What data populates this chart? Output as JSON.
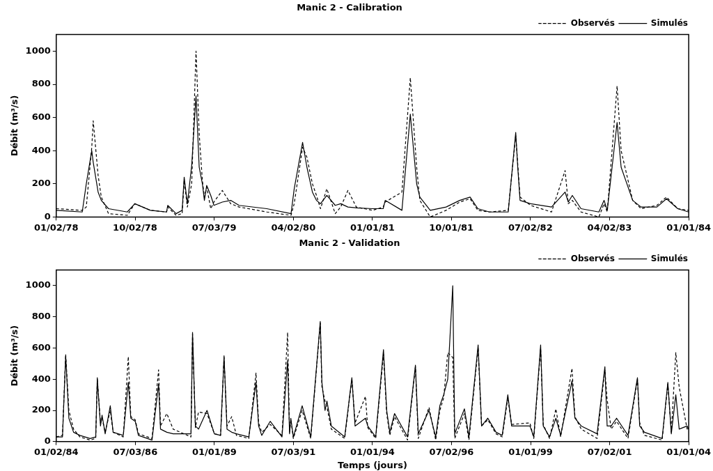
{
  "chart_data": [
    {
      "type": "line",
      "title": "Manic 2 - Calibration",
      "ylabel": "Débit (m³/s)",
      "legend": "top right",
      "grid": false,
      "marker": "none",
      "xlim": [
        "1978-01-02",
        "1984-01-01"
      ],
      "ylim": [
        0,
        1100
      ],
      "yticks": [
        0,
        200,
        400,
        600,
        800,
        1000
      ],
      "xticks": [
        {
          "value": "1978-01-02",
          "label": "01/02/78"
        },
        {
          "value": "1978-10-02",
          "label": "10/02/78"
        },
        {
          "value": "1979-07-03",
          "label": "07/03/79"
        },
        {
          "value": "1980-04-02",
          "label": "04/02/80"
        },
        {
          "value": "1981-01-01",
          "label": "01/01/81"
        },
        {
          "value": "1981-10-01",
          "label": "10/01/81"
        },
        {
          "value": "1982-07-02",
          "label": "07/02/82"
        },
        {
          "value": "1983-04-02",
          "label": "04/02/83"
        },
        {
          "value": "1984-01-01",
          "label": "01/01/84"
        }
      ],
      "x": [
        "1978-01-02",
        "1978-04-02",
        "1978-04-16",
        "1978-05-05",
        "1978-05-10",
        "1978-05-27",
        "1978-06-07",
        "1978-07-02",
        "1978-09-05",
        "1978-10-01",
        "1978-11-24",
        "1979-01-19",
        "1979-01-23",
        "1979-02-21",
        "1979-03-14",
        "1979-03-21",
        "1979-04-01",
        "1979-04-16",
        "1979-05-01",
        "1979-05-12",
        "1979-05-23",
        "1979-05-30",
        "1979-06-07",
        "1979-06-21",
        "1979-07-02",
        "1979-07-31",
        "1979-08-29",
        "1979-09-27",
        "1980-01-01",
        "1980-03-25",
        "1980-04-05",
        "1980-05-04",
        "1980-05-19",
        "1980-06-07",
        "1980-06-21",
        "1980-07-05",
        "1980-07-27",
        "1980-08-25",
        "1980-09-13",
        "1980-10-08",
        "1980-11-06",
        "1981-01-01",
        "1981-02-07",
        "1981-02-14",
        "1981-04-13",
        "1981-05-12",
        "1981-06-03",
        "1981-06-14",
        "1981-07-20",
        "1981-09-13",
        "1981-10-30",
        "1981-12-05",
        "1982-01-01",
        "1982-02-10",
        "1982-04-16",
        "1982-05-12",
        "1982-05-19",
        "1982-05-27",
        "1982-07-02",
        "1982-09-13",
        "1982-10-30",
        "1982-11-10",
        "1982-11-24",
        "1982-12-24",
        "1983-02-24",
        "1983-03-14",
        "1983-03-25",
        "1983-04-28",
        "1983-05-12",
        "1983-06-21",
        "1983-07-20",
        "1983-09-13",
        "1983-10-16",
        "1983-11-24",
        "1984-01-01"
      ],
      "series": [
        {
          "name": "Observés",
          "color": "#000000",
          "line_style": "dashed",
          "values": [
            50,
            40,
            60,
            420,
            580,
            250,
            120,
            20,
            10,
            80,
            40,
            30,
            60,
            10,
            20,
            220,
            60,
            200,
            1000,
            500,
            220,
            120,
            180,
            50,
            90,
            160,
            80,
            60,
            30,
            10,
            80,
            420,
            360,
            200,
            130,
            50,
            170,
            20,
            60,
            160,
            60,
            40,
            60,
            90,
            150,
            840,
            300,
            100,
            0,
            40,
            90,
            110,
            40,
            30,
            40,
            490,
            320,
            120,
            70,
            30,
            280,
            80,
            100,
            30,
            0,
            80,
            30,
            790,
            400,
            100,
            50,
            70,
            120,
            50,
            40
          ]
        },
        {
          "name": "Simulés",
          "color": "#000000",
          "line_style": "solid",
          "values": [
            40,
            30,
            200,
            400,
            330,
            150,
            100,
            50,
            30,
            80,
            40,
            30,
            70,
            20,
            40,
            240,
            80,
            310,
            730,
            300,
            200,
            100,
            190,
            130,
            70,
            90,
            100,
            70,
            50,
            20,
            170,
            450,
            300,
            150,
            100,
            80,
            130,
            70,
            80,
            60,
            55,
            50,
            50,
            100,
            40,
            620,
            200,
            120,
            40,
            60,
            100,
            120,
            50,
            30,
            30,
            510,
            300,
            100,
            80,
            60,
            150,
            90,
            130,
            50,
            30,
            100,
            40,
            570,
            300,
            100,
            60,
            60,
            110,
            50,
            30
          ]
        }
      ]
    },
    {
      "type": "line",
      "title": "Manic 2 - Validation",
      "xlabel": "Temps (jours)",
      "ylabel": "Débit (m³/s)",
      "legend": "top right",
      "grid": false,
      "marker": "none",
      "xlim": [
        "1984-01-02",
        "2004-01-01"
      ],
      "ylim": [
        0,
        1100
      ],
      "yticks": [
        0,
        200,
        400,
        600,
        800,
        1000
      ],
      "xticks": [
        {
          "value": "1984-01-02",
          "label": "01/02/84"
        },
        {
          "value": "1986-07-03",
          "label": "07/03/86"
        },
        {
          "value": "1989-01-01",
          "label": "01/01/89"
        },
        {
          "value": "1991-07-03",
          "label": "07/03/91"
        },
        {
          "value": "1994-01-01",
          "label": "01/01/94"
        },
        {
          "value": "1996-07-02",
          "label": "07/02/96"
        },
        {
          "value": "1999-01-01",
          "label": "01/01/99"
        },
        {
          "value": "2001-07-02",
          "label": "07/02/01"
        },
        {
          "value": "2004-01-01",
          "label": "01/01/04"
        }
      ],
      "x": [
        "1984-01-02",
        "1984-03-14",
        "1984-04-20",
        "1984-05-27",
        "1984-07-20",
        "1984-10-01",
        "1985-01-27",
        "1985-04-02",
        "1985-04-20",
        "1985-05-27",
        "1985-06-14",
        "1985-07-20",
        "1985-09-17",
        "1985-10-20",
        "1986-02-14",
        "1986-04-13",
        "1986-05-12",
        "1986-07-02",
        "1986-08-08",
        "1987-01-12",
        "1987-03-29",
        "1987-04-20",
        "1987-07-02",
        "1987-09-13",
        "1988-04-06",
        "1988-04-24",
        "1988-05-27",
        "1988-07-02",
        "1988-10-08",
        "1989-01-01",
        "1989-03-14",
        "1989-04-23",
        "1989-05-27",
        "1989-07-20",
        "1989-09-13",
        "1990-02-03",
        "1990-04-27",
        "1990-05-27",
        "1990-07-02",
        "1990-10-08",
        "1991-02-21",
        "1991-04-27",
        "1991-05-19",
        "1991-06-03",
        "1991-07-02",
        "1991-10-12",
        "1992-01-19",
        "1992-05-08",
        "1992-05-27",
        "1992-07-02",
        "1992-07-24",
        "1992-09-13",
        "1993-02-14",
        "1993-05-08",
        "1993-06-14",
        "1993-10-12",
        "1993-11-07",
        "1994-02-07",
        "1994-05-08",
        "1994-06-14",
        "1994-07-20",
        "1994-09-13",
        "1995-02-10",
        "1995-05-12",
        "1995-06-14",
        "1995-10-16",
        "1996-01-01",
        "1996-02-18",
        "1996-04-02",
        "1996-05-19",
        "1996-07-16",
        "1996-08-08",
        "1996-11-28",
        "1997-01-19",
        "1997-05-05",
        "1997-06-14",
        "1997-08-25",
        "1997-11-28",
        "1998-02-07",
        "1998-04-13",
        "1998-05-27",
        "1998-12-24",
        "1999-02-07",
        "1999-04-27",
        "1999-05-27",
        "1999-08-08",
        "1999-10-20",
        "1999-12-14",
        "2000-04-23",
        "2000-05-27",
        "2000-08-08",
        "2001-02-07",
        "2001-05-08",
        "2001-06-03",
        "2001-07-20",
        "2001-09-20",
        "2002-01-30",
        "2002-05-19",
        "2002-06-14",
        "2002-08-08",
        "2003-02-28",
        "2003-05-05",
        "2003-06-14",
        "2003-08-05",
        "2003-09-13",
        "2003-12-14",
        "2004-01-01"
      ],
      "series": [
        {
          "name": "Observés",
          "color": "#000000",
          "line_style": "dashed",
          "values": [
            30,
            40,
            560,
            200,
            80,
            30,
            10,
            20,
            400,
            120,
            150,
            60,
            200,
            60,
            30,
            545,
            160,
            140,
            50,
            20,
            460,
            100,
            180,
            80,
            30,
            690,
            90,
            190,
            180,
            50,
            40,
            540,
            100,
            160,
            40,
            20,
            440,
            120,
            60,
            110,
            40,
            700,
            60,
            140,
            20,
            200,
            20,
            760,
            350,
            260,
            220,
            80,
            20,
            400,
            120,
            290,
            90,
            20,
            560,
            180,
            40,
            160,
            10,
            480,
            20,
            220,
            10,
            200,
            280,
            570,
            540,
            20,
            180,
            10,
            600,
            100,
            140,
            50,
            30,
            280,
            110,
            120,
            20,
            600,
            110,
            20,
            210,
            30,
            470,
            160,
            80,
            20,
            460,
            270,
            80,
            130,
            20,
            400,
            120,
            40,
            10,
            370,
            60,
            570,
            350,
            80,
            90
          ]
        },
        {
          "name": "Simulés",
          "color": "#000000",
          "line_style": "solid",
          "values": [
            30,
            30,
            550,
            150,
            60,
            40,
            20,
            30,
            410,
            100,
            170,
            50,
            230,
            60,
            40,
            380,
            150,
            130,
            40,
            10,
            370,
            80,
            60,
            50,
            50,
            700,
            100,
            80,
            200,
            50,
            40,
            550,
            80,
            60,
            50,
            30,
            380,
            100,
            40,
            130,
            30,
            520,
            50,
            150,
            30,
            230,
            30,
            770,
            380,
            200,
            260,
            100,
            30,
            410,
            100,
            150,
            100,
            30,
            590,
            200,
            60,
            180,
            30,
            490,
            50,
            200,
            30,
            230,
            300,
            400,
            1000,
            50,
            210,
            30,
            620,
            100,
            150,
            60,
            40,
            300,
            100,
            100,
            30,
            620,
            100,
            30,
            150,
            40,
            390,
            150,
            100,
            50,
            480,
            100,
            100,
            150,
            40,
            410,
            100,
            60,
            20,
            380,
            50,
            300,
            80,
            100,
            80
          ]
        }
      ]
    }
  ]
}
